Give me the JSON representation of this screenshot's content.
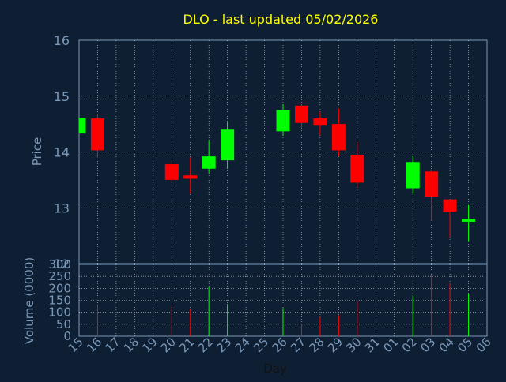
{
  "title": "DLO - last updated 05/02/2026",
  "colors": {
    "background": "#0f1f33",
    "title": "#ffff00",
    "axis_text": "#7a98b8",
    "grid": "#ffffff",
    "up": "#00ff00",
    "down": "#ff0000"
  },
  "chart_data": [
    {
      "type": "candlestick",
      "ylabel": "Price",
      "ylim": [
        12,
        16
      ],
      "yticks": [
        12,
        13,
        14,
        15,
        16
      ],
      "grid": true,
      "x_tick_labels": [
        "15",
        "16",
        "17",
        "18",
        "19",
        "20",
        "21",
        "22",
        "23",
        "24",
        "25",
        "26",
        "27",
        "28",
        "29",
        "30",
        "31",
        "01",
        "02",
        "03",
        "04",
        "05",
        "06"
      ],
      "candles": [
        {
          "day": "15",
          "open": 14.33,
          "high": 14.6,
          "low": 14.33,
          "close": 14.6
        },
        {
          "day": "16",
          "open": 14.6,
          "high": 14.68,
          "low": 13.9,
          "close": 14.03
        },
        {
          "day": "20",
          "open": 13.78,
          "high": 13.83,
          "low": 13.46,
          "close": 13.5
        },
        {
          "day": "21",
          "open": 13.58,
          "high": 13.9,
          "low": 13.25,
          "close": 13.52
        },
        {
          "day": "22",
          "open": 13.7,
          "high": 14.2,
          "low": 13.62,
          "close": 13.92
        },
        {
          "day": "23",
          "open": 13.85,
          "high": 14.55,
          "low": 13.7,
          "close": 14.4
        },
        {
          "day": "26",
          "open": 14.37,
          "high": 14.85,
          "low": 14.3,
          "close": 14.75
        },
        {
          "day": "27",
          "open": 14.83,
          "high": 14.85,
          "low": 14.42,
          "close": 14.52
        },
        {
          "day": "28",
          "open": 14.6,
          "high": 14.72,
          "low": 14.3,
          "close": 14.47
        },
        {
          "day": "29",
          "open": 14.5,
          "high": 14.78,
          "low": 13.92,
          "close": 14.03
        },
        {
          "day": "30",
          "open": 13.95,
          "high": 14.18,
          "low": 13.37,
          "close": 13.45
        },
        {
          "day": "02",
          "open": 13.35,
          "high": 13.92,
          "low": 13.25,
          "close": 13.82
        },
        {
          "day": "03",
          "open": 13.65,
          "high": 13.68,
          "low": 12.77,
          "close": 13.2
        },
        {
          "day": "04",
          "open": 13.15,
          "high": 13.15,
          "low": 12.47,
          "close": 12.93
        },
        {
          "day": "05",
          "open": 12.75,
          "high": 13.05,
          "low": 12.4,
          "close": 12.8
        }
      ]
    },
    {
      "type": "bar",
      "ylabel": "Volume (0000)",
      "xlabel": "Day",
      "ylim": [
        0,
        300
      ],
      "yticks": [
        0,
        50,
        100,
        150,
        200,
        250,
        300
      ],
      "grid": true,
      "x_tick_labels": [
        "15",
        "16",
        "17",
        "18",
        "19",
        "20",
        "21",
        "22",
        "23",
        "24",
        "25",
        "26",
        "27",
        "28",
        "29",
        "30",
        "31",
        "01",
        "02",
        "03",
        "04",
        "05",
        "06"
      ],
      "series": [
        {
          "days": [
            "16",
            "20",
            "21",
            "22",
            "23",
            "26",
            "27",
            "28",
            "29",
            "30",
            "02",
            "03",
            "04",
            "05"
          ],
          "values": [
            130,
            128,
            112,
            208,
            135,
            118,
            52,
            80,
            88,
            145,
            168,
            255,
            222,
            178
          ],
          "direction": [
            "down",
            "down",
            "down",
            "up",
            "up",
            "up",
            "down",
            "down",
            "down",
            "down",
            "up",
            "down",
            "down",
            "up"
          ]
        }
      ]
    }
  ]
}
